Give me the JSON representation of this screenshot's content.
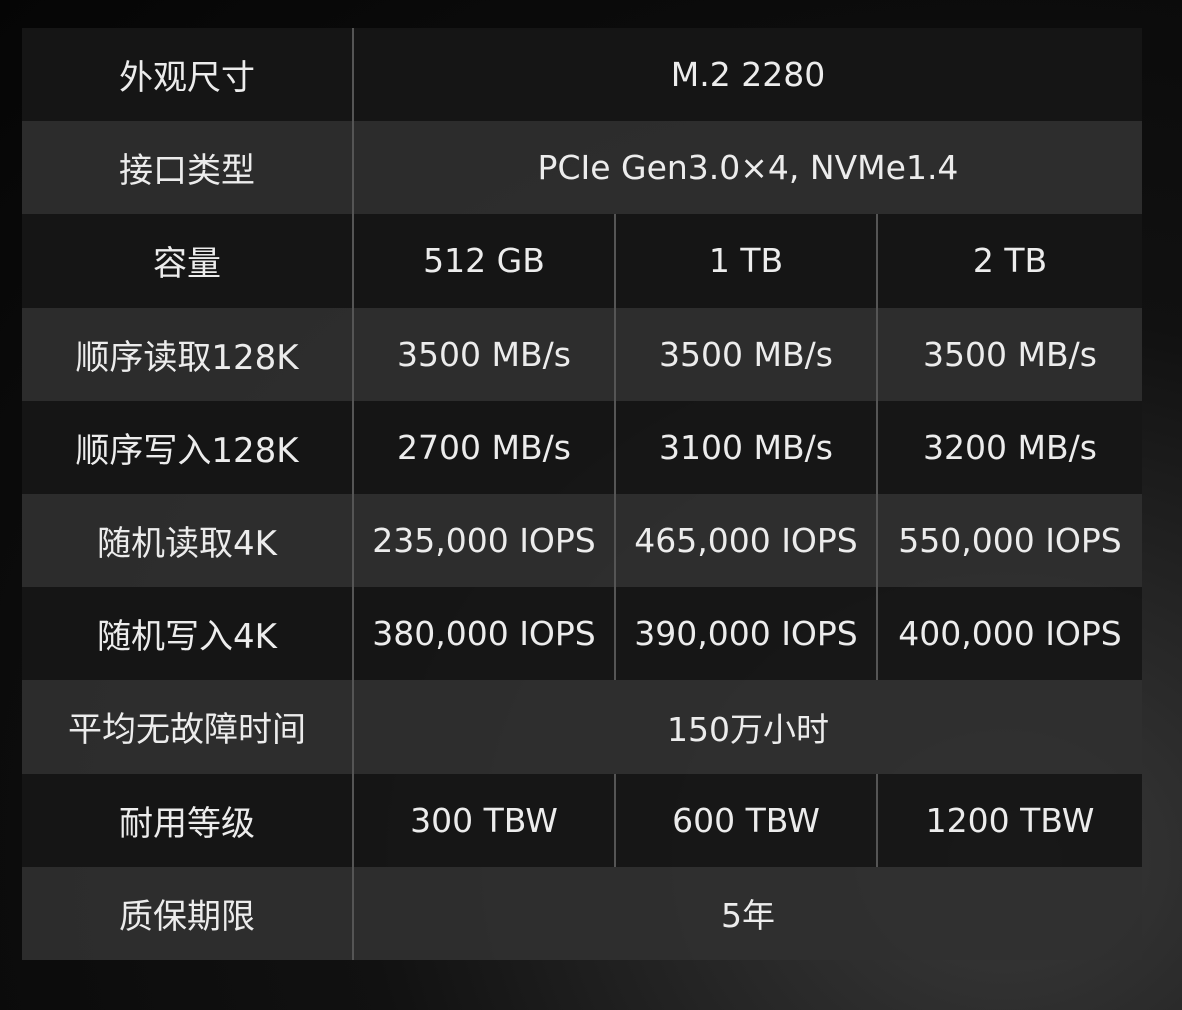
{
  "table": {
    "rows": [
      {
        "label": "外观尺寸",
        "cells": [
          "M.2 2280"
        ]
      },
      {
        "label": "接口类型",
        "cells": [
          "PCIe Gen3.0×4, NVMe1.4"
        ]
      },
      {
        "label": "容量",
        "cells": [
          "512 GB",
          "1 TB",
          "2 TB"
        ]
      },
      {
        "label": "顺序读取128K",
        "cells": [
          "3500 MB/s",
          "3500 MB/s",
          "3500 MB/s"
        ]
      },
      {
        "label": "顺序写入128K",
        "cells": [
          "2700 MB/s",
          "3100 MB/s",
          "3200 MB/s"
        ]
      },
      {
        "label": "随机读取4K",
        "cells": [
          "235,000 IOPS",
          "465,000 IOPS",
          "550,000 IOPS"
        ]
      },
      {
        "label": "随机写入4K",
        "cells": [
          "380,000 IOPS",
          "390,000 IOPS",
          "400,000 IOPS"
        ]
      },
      {
        "label": "平均无故障时间",
        "cells": [
          "150万小时"
        ]
      },
      {
        "label": "耐用等级",
        "cells": [
          "300 TBW",
          "600 TBW",
          "1200 TBW"
        ]
      },
      {
        "label": "质保期限",
        "cells": [
          "5年"
        ]
      }
    ]
  }
}
